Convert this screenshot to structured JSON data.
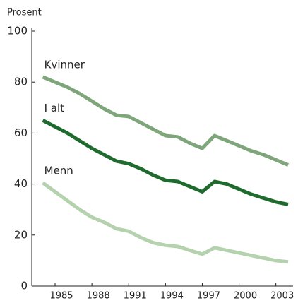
{
  "chart_data": {
    "type": "line",
    "y_label": "Prosent",
    "x": [
      1984,
      1985,
      1986,
      1987,
      1988,
      1989,
      1990,
      1991,
      1992,
      1993,
      1994,
      1995,
      1996,
      1997,
      1998,
      1999,
      2000,
      2001,
      2002,
      2003,
      2004
    ],
    "series": [
      {
        "name": "Kvinner",
        "color": "#7fa67a",
        "values": [
          82,
          80,
          78,
          75.5,
          72.5,
          69.5,
          67,
          66.5,
          64,
          61.5,
          59,
          58.5,
          56,
          54,
          59,
          57,
          55,
          53,
          51.5,
          49.5,
          47.5
        ]
      },
      {
        "name": "I alt",
        "color": "#1f6b2e",
        "values": [
          65,
          62.5,
          60,
          57,
          54,
          51.5,
          49,
          48,
          46,
          43.5,
          41.5,
          41,
          39,
          37,
          41,
          40,
          38,
          36,
          34.5,
          33,
          32
        ]
      },
      {
        "name": "Menn",
        "color": "#b5d2ae",
        "values": [
          40.5,
          37,
          33.5,
          30,
          27,
          25,
          22.5,
          21.5,
          19,
          17,
          16,
          15.5,
          14,
          12.5,
          15,
          14,
          13,
          12,
          11,
          10,
          9.5
        ]
      }
    ],
    "xlim": [
      1983.1,
      2004.4
    ],
    "xticks": [
      1985,
      1988,
      1991,
      1994,
      1997,
      2000,
      2003
    ],
    "ylim": [
      0,
      100
    ],
    "yticks": [
      0,
      20,
      40,
      60,
      80,
      100
    ],
    "grid": false
  }
}
